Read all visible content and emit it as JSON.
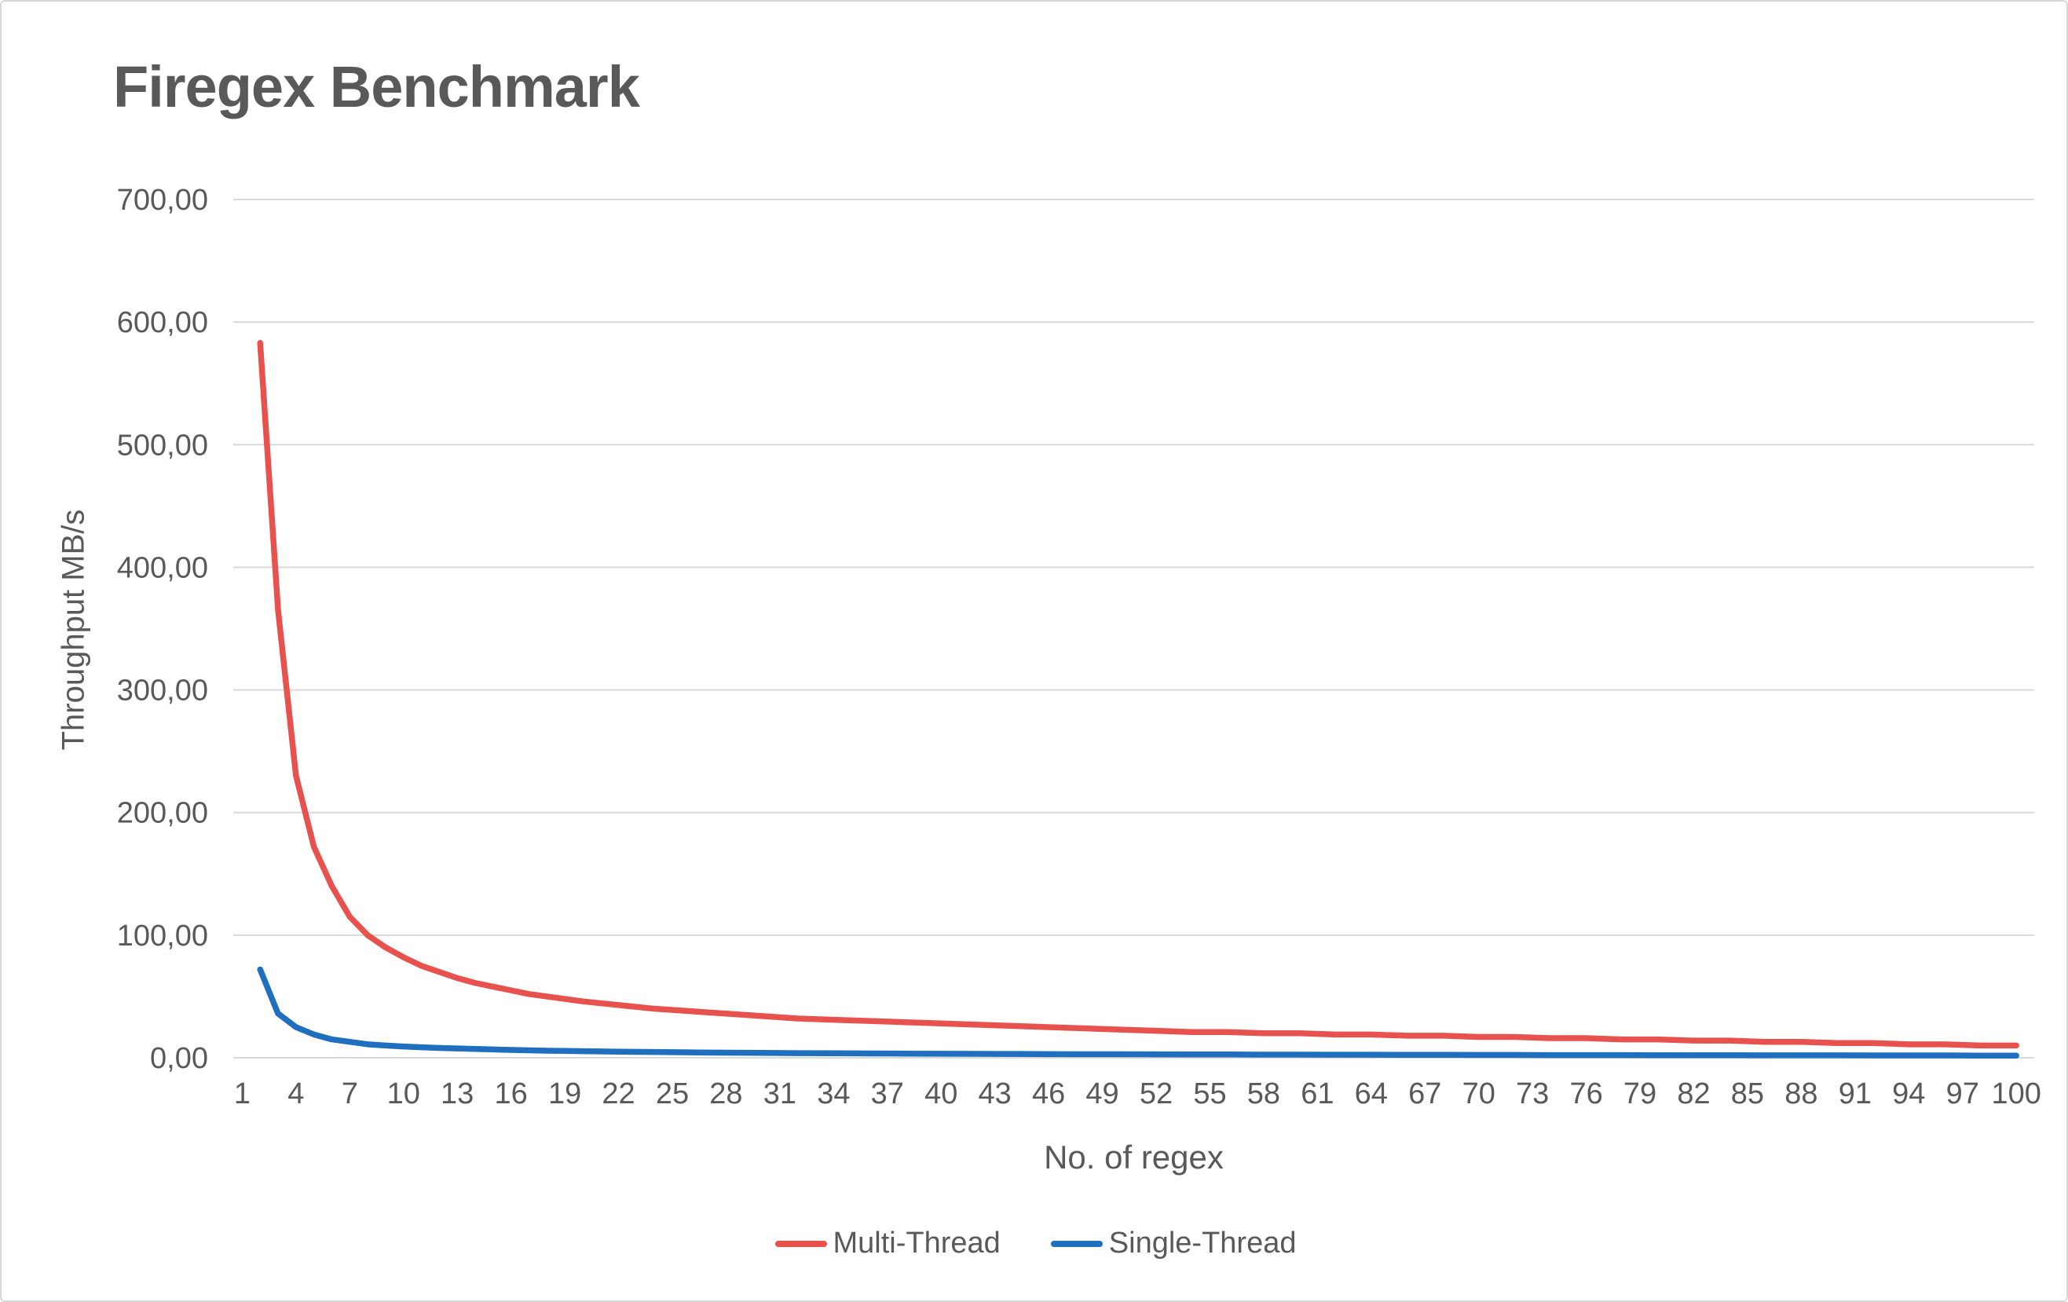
{
  "page": {
    "background": "#ffffff",
    "border_color": "#d8d8d8"
  },
  "chart_data": {
    "type": "line",
    "title": "Firegex Benchmark",
    "xlabel": "No. of regex",
    "ylabel": "Throughput MB/s",
    "grid": true,
    "grid_color": "#d9d9d9",
    "tick_color": "#595959",
    "title_color": "#595959",
    "legend_position": "bottom-center",
    "xlim": [
      0.5,
      101
    ],
    "ylim": [
      0,
      700
    ],
    "y_ticks": {
      "values": [
        700,
        600,
        500,
        400,
        300,
        200,
        100,
        0
      ],
      "labels": [
        "700,00",
        "600,00",
        "500,00",
        "400,00",
        "300,00",
        "200,00",
        "100,00",
        "0,00"
      ]
    },
    "x_ticks": [
      1,
      4,
      7,
      10,
      13,
      16,
      19,
      22,
      25,
      28,
      31,
      34,
      37,
      40,
      43,
      46,
      49,
      52,
      55,
      58,
      61,
      64,
      67,
      70,
      73,
      76,
      79,
      82,
      85,
      88,
      91,
      94,
      97,
      100
    ],
    "x": [
      2,
      3,
      4,
      5,
      6,
      7,
      8,
      9,
      10,
      11,
      12,
      13,
      14,
      15,
      16,
      17,
      18,
      19,
      20,
      22,
      24,
      26,
      28,
      30,
      32,
      34,
      36,
      38,
      40,
      42,
      44,
      46,
      48,
      50,
      52,
      54,
      56,
      58,
      60,
      62,
      64,
      66,
      68,
      70,
      72,
      74,
      76,
      78,
      80,
      82,
      84,
      86,
      88,
      90,
      92,
      94,
      96,
      98,
      100
    ],
    "series": [
      {
        "name": "Multi-Thread",
        "color": "#e8524e",
        "values": [
          583,
          365,
          230,
          172,
          140,
          115,
          100,
          90,
          82,
          75,
          70,
          65,
          61,
          58,
          55,
          52,
          50,
          48,
          46,
          43,
          40,
          38,
          36,
          34,
          32,
          31,
          30,
          29,
          28,
          27,
          26,
          25,
          24,
          23,
          22,
          21,
          21,
          20,
          20,
          19,
          19,
          18,
          18,
          17,
          17,
          16,
          16,
          15,
          15,
          14,
          14,
          13,
          13,
          12,
          12,
          11,
          11,
          10,
          10
        ]
      },
      {
        "name": "Single-Thread",
        "color": "#1f6fbe",
        "values": [
          72,
          36,
          25,
          19,
          15,
          13,
          11,
          10,
          9.2,
          8.6,
          8,
          7.6,
          7.2,
          6.8,
          6.4,
          6.1,
          5.8,
          5.6,
          5.4,
          5,
          4.7,
          4.4,
          4.2,
          4,
          3.8,
          3.7,
          3.5,
          3.4,
          3.3,
          3.2,
          3.1,
          3,
          2.9,
          2.9,
          2.8,
          2.7,
          2.7,
          2.6,
          2.6,
          2.5,
          2.5,
          2.4,
          2.4,
          2.3,
          2.3,
          2.2,
          2.2,
          2.2,
          2.1,
          2.1,
          2.1,
          2,
          2,
          2,
          1.9,
          1.9,
          1.9,
          1.8,
          1.8
        ]
      }
    ]
  }
}
